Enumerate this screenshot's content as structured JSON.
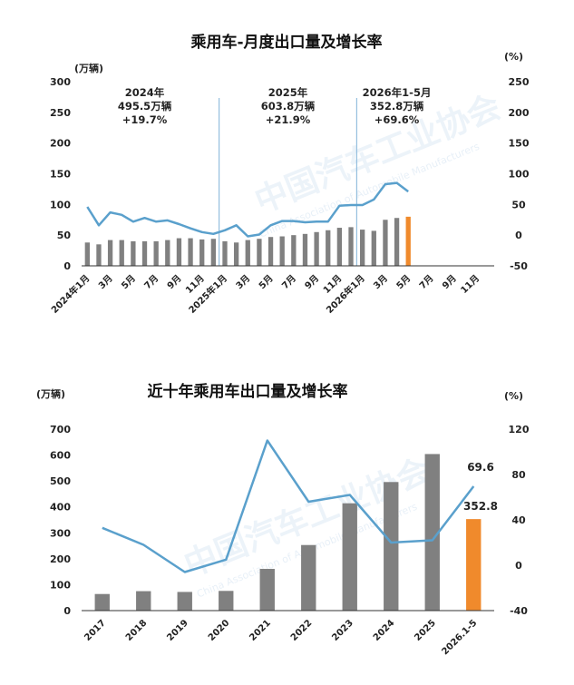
{
  "watermark": {
    "cn": "中国汽车工业协会",
    "en": "China Association of Automobile Manufacturers"
  },
  "chart_data": [
    {
      "type": "bar+line",
      "title": "乘用车-月度出口量及增长率",
      "left_unit": "(万辆)",
      "right_unit": "(%)",
      "ylim_left": [
        0,
        300
      ],
      "yticks_left": [
        "0",
        "50",
        "100",
        "150",
        "200",
        "250",
        "300"
      ],
      "ylim_right": [
        -50,
        250
      ],
      "yticks_right": [
        "-50",
        "0",
        "50",
        "100",
        "150",
        "200",
        "250"
      ],
      "x_labels": [
        "2024年1月",
        "",
        "3月",
        "",
        "5月",
        "",
        "7月",
        "",
        "9月",
        "",
        "11月",
        "",
        "2025年1月",
        "",
        "3月",
        "",
        "5月",
        "",
        "7月",
        "",
        "9月",
        "",
        "11月",
        "",
        "2026年1月",
        "",
        "3月",
        "",
        "5月",
        "",
        "7月",
        "",
        "9月",
        "",
        "11月",
        ""
      ],
      "volume": [
        38,
        35,
        42,
        42,
        40,
        40,
        40,
        42,
        45,
        45,
        43,
        44,
        40,
        38,
        42,
        44,
        47,
        48,
        50,
        52,
        55,
        58,
        62,
        63,
        59,
        57,
        75,
        78,
        80,
        null,
        null,
        null,
        null,
        null,
        null,
        null
      ],
      "growth": [
        46,
        16,
        37,
        33,
        22,
        28,
        22,
        24,
        18,
        11,
        5,
        2,
        8,
        16,
        -2,
        1,
        16,
        23,
        23,
        21,
        22,
        22,
        48,
        49,
        49,
        58,
        83,
        85,
        71,
        null,
        null,
        null,
        null,
        null,
        null,
        null
      ],
      "highlight_index": 28,
      "dividers_at": [
        11.5,
        23.5
      ],
      "annotations": [
        {
          "lines": [
            "2024年",
            "495.5万辆",
            "+19.7%"
          ]
        },
        {
          "lines": [
            "2025年",
            "603.8万辆",
            "+21.9%"
          ]
        },
        {
          "lines": [
            "2026年1-5月",
            "352.8万辆",
            "+69.6%"
          ]
        }
      ]
    },
    {
      "type": "bar+line",
      "title": "近十年乘用车出口量及增长率",
      "left_unit": "(万辆)",
      "right_unit": "(%)",
      "ylim_left": [
        0,
        700
      ],
      "yticks_left": [
        "0",
        "100",
        "200",
        "300",
        "400",
        "500",
        "600",
        "700"
      ],
      "ylim_right": [
        -40,
        120
      ],
      "yticks_right": [
        "-40",
        "0",
        "40",
        "80",
        "120"
      ],
      "categories": [
        "2017",
        "2018",
        "2019",
        "2020",
        "2021",
        "2022",
        "2023",
        "2024",
        "2025",
        "2026.1-5"
      ],
      "volume": [
        64,
        75,
        72,
        76,
        161,
        253,
        414,
        496,
        604,
        353
      ],
      "growth": [
        33,
        18,
        -6,
        5,
        110,
        56,
        62,
        20,
        22,
        69.6
      ],
      "highlight_index": 9,
      "labels": {
        "growth_last": "69.6",
        "volume_last": "352.8"
      }
    }
  ],
  "colors": {
    "bar": "#808080",
    "highlight": "#f08a2c",
    "line": "#5aa0cc",
    "divider": "#7fb2d8",
    "axis": "#333333"
  }
}
